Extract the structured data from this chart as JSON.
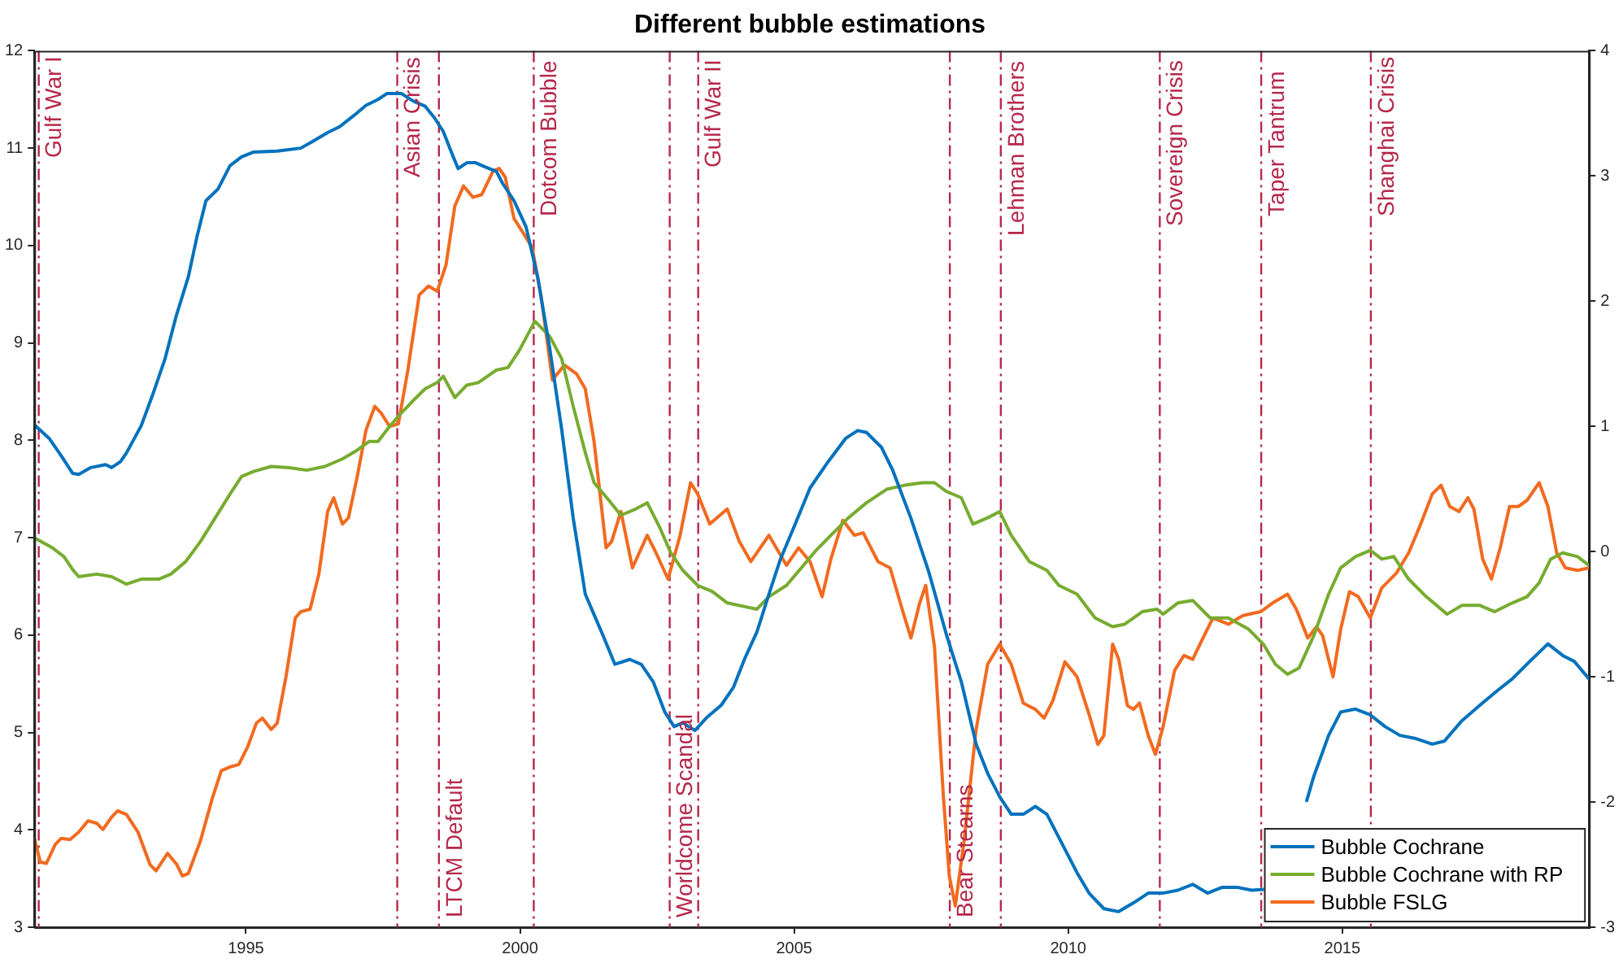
{
  "chart_data": {
    "type": "line",
    "title": "Different bubble estimations",
    "xlim": [
      1991.14,
      2019.5
    ],
    "xticks": [
      1995,
      2000,
      2005,
      2010,
      2015
    ],
    "ylim": [
      3,
      12
    ],
    "yticks": [
      3,
      4,
      5,
      6,
      7,
      8,
      9,
      10,
      11,
      12
    ],
    "y2lim": [
      -3,
      4
    ],
    "y2ticks": [
      -3,
      -2,
      -1,
      0,
      1,
      2,
      3,
      4
    ],
    "grid": false,
    "legend": "bottom right",
    "marker": "none",
    "line_style": "solid",
    "series": [
      {
        "name": "Bubble Cochrane",
        "color": "#0072bd",
        "x": [
          1991.14,
          1991.41,
          1991.63,
          1991.84,
          1991.95,
          1992.17,
          1992.44,
          1992.55,
          1992.71,
          1992.82,
          1993.09,
          1993.3,
          1993.52,
          1993.73,
          1993.95,
          1994.11,
          1994.27,
          1994.49,
          1994.71,
          1994.92,
          1995.14,
          1995.57,
          1996.0,
          1996.22,
          1996.49,
          1996.71,
          1996.98,
          1997.19,
          1997.41,
          1997.57,
          1997.84,
          1998.06,
          1998.27,
          1998.44,
          1998.6,
          1998.76,
          1998.87,
          1999.03,
          1999.19,
          1999.35,
          1999.57,
          1999.68,
          1999.89,
          2000.11,
          2000.32,
          2000.54,
          2000.76,
          2000.97,
          2001.19,
          2001.35,
          2001.51,
          2001.73,
          2002.0,
          2002.21,
          2002.43,
          2002.64,
          2002.81,
          2002.97,
          2003.19,
          2003.4,
          2003.67,
          2003.89,
          2004.1,
          2004.32,
          2004.54,
          2004.75,
          2005.02,
          2005.29,
          2005.62,
          2005.94,
          2006.16,
          2006.32,
          2006.59,
          2006.8,
          2007.13,
          2007.45,
          2007.78,
          2008.05,
          2008.32,
          2008.53,
          2008.75,
          2008.96,
          2009.18,
          2009.4,
          2009.61,
          2009.83,
          2010.16,
          2010.38,
          2010.65,
          2010.92,
          2011.19,
          2011.46,
          2011.73,
          2012.0,
          2012.27,
          2012.54,
          2012.81,
          2013.08,
          2013.35,
          2013.62,
          2013.9,
          2014.35,
          2014.48,
          2014.75,
          2014.97,
          2015.24,
          2015.51,
          2015.78,
          2016.05,
          2016.32,
          2016.64,
          2016.86,
          2017.18,
          2017.51,
          2017.83,
          2018.1,
          2018.42,
          2018.75,
          2019.02,
          2019.23,
          2019.5
        ],
        "values": [
          8.16,
          8.02,
          7.84,
          7.66,
          7.65,
          7.72,
          7.75,
          7.72,
          7.78,
          7.87,
          8.15,
          8.47,
          8.83,
          9.28,
          9.68,
          10.1,
          10.46,
          10.58,
          10.82,
          10.91,
          10.96,
          10.97,
          11.0,
          11.07,
          11.16,
          11.22,
          11.34,
          11.44,
          11.5,
          11.56,
          11.56,
          11.48,
          11.43,
          11.31,
          11.17,
          10.94,
          10.79,
          10.85,
          10.85,
          10.81,
          10.76,
          10.64,
          10.46,
          10.19,
          9.68,
          8.95,
          8.11,
          7.2,
          6.42,
          6.21,
          6.0,
          5.7,
          5.75,
          5.7,
          5.52,
          5.21,
          5.06,
          5.1,
          5.02,
          5.15,
          5.28,
          5.46,
          5.76,
          6.03,
          6.42,
          6.78,
          7.14,
          7.51,
          7.78,
          8.02,
          8.1,
          8.08,
          7.93,
          7.69,
          7.2,
          6.66,
          6.0,
          5.52,
          4.88,
          4.58,
          4.34,
          4.16,
          4.16,
          4.24,
          4.16,
          3.92,
          3.56,
          3.35,
          3.19,
          3.16,
          3.25,
          3.35,
          3.35,
          3.38,
          3.44,
          3.35,
          3.41,
          3.41,
          3.38,
          3.39,
          null,
          4.3,
          4.55,
          4.97,
          5.21,
          5.24,
          5.18,
          5.06,
          4.97,
          4.94,
          4.88,
          4.91,
          5.12,
          5.28,
          5.43,
          5.55,
          5.73,
          5.91,
          5.79,
          5.73,
          5.55
        ]
      },
      {
        "name": "Bubble Cochrane with RP",
        "color": "#77ac30",
        "axis": "y2",
        "x": [
          1991.14,
          1991.47,
          1991.68,
          1991.85,
          1991.95,
          1992.28,
          1992.55,
          1992.82,
          1993.09,
          1993.41,
          1993.63,
          1993.9,
          1994.17,
          1994.44,
          1994.71,
          1994.92,
          1995.14,
          1995.46,
          1995.79,
          1996.11,
          1996.44,
          1996.76,
          1997.03,
          1997.25,
          1997.41,
          1997.62,
          1997.84,
          1998.06,
          1998.27,
          1998.49,
          1998.6,
          1998.81,
          1999.03,
          1999.24,
          1999.57,
          1999.78,
          1999.99,
          2000.27,
          2000.54,
          2000.76,
          2000.97,
          2001.19,
          2001.35,
          2001.62,
          2001.84,
          2002.11,
          2002.32,
          2002.54,
          2002.75,
          2002.97,
          2003.24,
          2003.51,
          2003.78,
          2004.1,
          2004.32,
          2004.54,
          2004.86,
          2005.13,
          2005.4,
          2005.67,
          2005.99,
          2006.32,
          2006.7,
          2007.02,
          2007.34,
          2007.56,
          2007.78,
          2008.05,
          2008.26,
          2008.53,
          2008.75,
          2008.96,
          2009.29,
          2009.61,
          2009.83,
          2010.16,
          2010.49,
          2010.81,
          2011.03,
          2011.35,
          2011.62,
          2011.73,
          2012.0,
          2012.27,
          2012.59,
          2012.92,
          2013.29,
          2013.56,
          2013.78,
          2014.0,
          2014.21,
          2014.48,
          2014.75,
          2014.97,
          2015.24,
          2015.51,
          2015.72,
          2015.94,
          2016.21,
          2016.53,
          2016.91,
          2017.18,
          2017.51,
          2017.78,
          2018.1,
          2018.37,
          2018.59,
          2018.8,
          2019.02,
          2019.29,
          2019.5
        ],
        "values": [
          0.11,
          0.03,
          -0.04,
          -0.15,
          -0.2,
          -0.18,
          -0.2,
          -0.26,
          -0.22,
          -0.22,
          -0.18,
          -0.08,
          0.08,
          0.27,
          0.46,
          0.6,
          0.64,
          0.68,
          0.67,
          0.65,
          0.68,
          0.74,
          0.81,
          0.88,
          0.88,
          1.0,
          1.11,
          1.21,
          1.3,
          1.35,
          1.4,
          1.23,
          1.33,
          1.35,
          1.45,
          1.47,
          1.61,
          1.84,
          1.72,
          1.54,
          1.16,
          0.79,
          0.55,
          0.41,
          0.29,
          0.34,
          0.39,
          0.2,
          -0.01,
          -0.15,
          -0.27,
          -0.32,
          -0.41,
          -0.44,
          -0.46,
          -0.36,
          -0.27,
          -0.13,
          0.01,
          0.13,
          0.27,
          0.39,
          0.5,
          0.53,
          0.55,
          0.55,
          0.48,
          0.43,
          0.22,
          0.27,
          0.32,
          0.13,
          -0.08,
          -0.15,
          -0.27,
          -0.34,
          -0.53,
          -0.6,
          -0.58,
          -0.48,
          -0.46,
          -0.5,
          -0.41,
          -0.39,
          -0.53,
          -0.53,
          -0.62,
          -0.74,
          -0.9,
          -0.98,
          -0.93,
          -0.67,
          -0.34,
          -0.13,
          -0.04,
          0.01,
          -0.06,
          -0.04,
          -0.22,
          -0.36,
          -0.5,
          -0.43,
          -0.43,
          -0.48,
          -0.41,
          -0.36,
          -0.25,
          -0.06,
          -0.01,
          -0.04,
          -0.11
        ]
      },
      {
        "name": "Bubble FSLG",
        "color": "#f26a1f",
        "axis": "y2",
        "x": [
          1991.14,
          1991.25,
          1991.36,
          1991.52,
          1991.63,
          1991.79,
          1991.95,
          1992.12,
          1992.28,
          1992.39,
          1992.55,
          1992.66,
          1992.82,
          1993.03,
          1993.25,
          1993.36,
          1993.57,
          1993.74,
          1993.84,
          1993.95,
          1994.17,
          1994.38,
          1994.55,
          1994.71,
          1994.87,
          1995.03,
          1995.19,
          1995.3,
          1995.46,
          1995.57,
          1995.73,
          1995.9,
          1996.0,
          1996.17,
          1996.33,
          1996.49,
          1996.6,
          1996.76,
          1996.87,
          1997.03,
          1997.19,
          1997.35,
          1997.46,
          1997.62,
          1997.78,
          1997.95,
          1998.16,
          1998.33,
          1998.49,
          1998.65,
          1998.81,
          1998.97,
          1999.14,
          1999.3,
          1999.51,
          1999.62,
          1999.73,
          1999.89,
          2000.05,
          2000.22,
          2000.38,
          2000.59,
          2000.81,
          2001.03,
          2001.19,
          2001.35,
          2001.57,
          2001.67,
          2001.84,
          2002.05,
          2002.32,
          2002.48,
          2002.7,
          2002.92,
          2003.11,
          2003.24,
          2003.46,
          2003.78,
          2004.0,
          2004.21,
          2004.54,
          2004.86,
          2005.08,
          2005.29,
          2005.51,
          2005.67,
          2005.89,
          2006.1,
          2006.26,
          2006.53,
          2006.75,
          2006.97,
          2007.13,
          2007.29,
          2007.4,
          2007.56,
          2007.72,
          2007.83,
          2007.94,
          2008.1,
          2008.32,
          2008.53,
          2008.75,
          2008.96,
          2009.18,
          2009.4,
          2009.56,
          2009.72,
          2009.94,
          2010.16,
          2010.38,
          2010.54,
          2010.65,
          2010.81,
          2010.92,
          2011.08,
          2011.19,
          2011.3,
          2011.46,
          2011.59,
          2011.73,
          2011.94,
          2012.11,
          2012.27,
          2012.48,
          2012.64,
          2012.92,
          2013.19,
          2013.51,
          2013.73,
          2014.0,
          2014.16,
          2014.37,
          2014.53,
          2014.64,
          2014.83,
          2014.97,
          2015.13,
          2015.29,
          2015.51,
          2015.72,
          2015.99,
          2016.21,
          2016.43,
          2016.64,
          2016.8,
          2016.96,
          2017.13,
          2017.29,
          2017.4,
          2017.56,
          2017.72,
          2017.88,
          2018.05,
          2018.21,
          2018.37,
          2018.59,
          2018.75,
          2018.91,
          2019.07,
          2019.29,
          2019.5
        ],
        "values": [
          -2.29,
          -2.48,
          -2.49,
          -2.34,
          -2.29,
          -2.3,
          -2.24,
          -2.15,
          -2.17,
          -2.22,
          -2.12,
          -2.07,
          -2.1,
          -2.24,
          -2.5,
          -2.55,
          -2.41,
          -2.5,
          -2.59,
          -2.57,
          -2.31,
          -1.98,
          -1.75,
          -1.72,
          -1.7,
          -1.56,
          -1.37,
          -1.33,
          -1.42,
          -1.37,
          -1.0,
          -0.53,
          -0.48,
          -0.46,
          -0.18,
          0.32,
          0.43,
          0.22,
          0.27,
          0.6,
          0.97,
          1.16,
          1.11,
          1.0,
          1.02,
          1.44,
          2.05,
          2.12,
          2.08,
          2.29,
          2.76,
          2.92,
          2.83,
          2.85,
          3.04,
          3.06,
          2.99,
          2.66,
          2.55,
          2.43,
          2.05,
          1.37,
          1.49,
          1.42,
          1.3,
          0.88,
          0.03,
          0.08,
          0.32,
          -0.13,
          0.13,
          -0.01,
          -0.22,
          0.13,
          0.55,
          0.46,
          0.22,
          0.34,
          0.08,
          -0.08,
          0.13,
          -0.11,
          0.03,
          -0.08,
          -0.36,
          -0.06,
          0.25,
          0.13,
          0.15,
          -0.08,
          -0.13,
          -0.46,
          -0.69,
          -0.41,
          -0.27,
          -0.76,
          -1.94,
          -2.59,
          -2.83,
          -2.31,
          -1.42,
          -0.9,
          -0.74,
          -0.9,
          -1.21,
          -1.26,
          -1.33,
          -1.19,
          -0.88,
          -1.0,
          -1.3,
          -1.54,
          -1.47,
          -0.74,
          -0.86,
          -1.23,
          -1.26,
          -1.21,
          -1.47,
          -1.62,
          -1.4,
          -0.95,
          -0.83,
          -0.86,
          -0.67,
          -0.53,
          -0.58,
          -0.51,
          -0.48,
          -0.41,
          -0.34,
          -0.46,
          -0.69,
          -0.6,
          -0.67,
          -1.0,
          -0.62,
          -0.32,
          -0.36,
          -0.53,
          -0.29,
          -0.17,
          -0.01,
          0.22,
          0.46,
          0.53,
          0.36,
          0.32,
          0.43,
          0.34,
          -0.06,
          -0.22,
          0.03,
          0.36,
          0.36,
          0.41,
          0.55,
          0.36,
          -0.01,
          -0.13,
          -0.15,
          -0.13
        ]
      }
    ],
    "ref_lines": [
      {
        "axis": "x",
        "value": 1991.22,
        "color": "#b5284b",
        "line_style": "dashed"
      },
      {
        "axis": "x",
        "value": 1997.76,
        "color": "#b5284b",
        "line_style": "dashed"
      },
      {
        "axis": "x",
        "value": 1998.52,
        "color": "#b5284b",
        "line_style": "dashed"
      },
      {
        "axis": "x",
        "value": 2000.25,
        "color": "#b5284b",
        "line_style": "dashed"
      },
      {
        "axis": "x",
        "value": 2002.73,
        "color": "#b5284b",
        "line_style": "dashed"
      },
      {
        "axis": "x",
        "value": 2003.25,
        "color": "#b5284b",
        "line_style": "dashed"
      },
      {
        "axis": "x",
        "value": 2007.84,
        "color": "#b5284b",
        "line_style": "dashed"
      },
      {
        "axis": "x",
        "value": 2008.77,
        "color": "#b5284b",
        "line_style": "dashed"
      },
      {
        "axis": "x",
        "value": 2011.67,
        "color": "#b5284b",
        "line_style": "dashed"
      },
      {
        "axis": "x",
        "value": 2013.52,
        "color": "#b5284b",
        "line_style": "dashed"
      },
      {
        "axis": "x",
        "value": 2015.52,
        "color": "#b5284b",
        "line_style": "dashed"
      }
    ],
    "annotations": [
      {
        "text": "Gulf War I",
        "x": 1991.22,
        "y": 10.9
      },
      {
        "text": "Asian Crisis",
        "x": 1997.76,
        "y": 10.7
      },
      {
        "text": "LTCM Default",
        "x": 1998.52,
        "y": 3.1
      },
      {
        "text": "Dotcom Bubble",
        "x": 2000.25,
        "y": 10.3
      },
      {
        "text": "Worldcome Scandal",
        "x": 2002.73,
        "y": 3.1
      },
      {
        "text": "Gulf War II",
        "x": 2003.25,
        "y": 10.8
      },
      {
        "text": "Bear Stearns",
        "x": 2007.84,
        "y": 3.1
      },
      {
        "text": "Lehman Brothers",
        "x": 2008.77,
        "y": 10.1
      },
      {
        "text": "Sovereign Crisis",
        "x": 2011.67,
        "y": 10.2
      },
      {
        "text": "Taper Tantrum",
        "x": 2013.52,
        "y": 10.3
      },
      {
        "text": "Shanghai Crisis",
        "x": 2015.52,
        "y": 10.3
      }
    ]
  }
}
